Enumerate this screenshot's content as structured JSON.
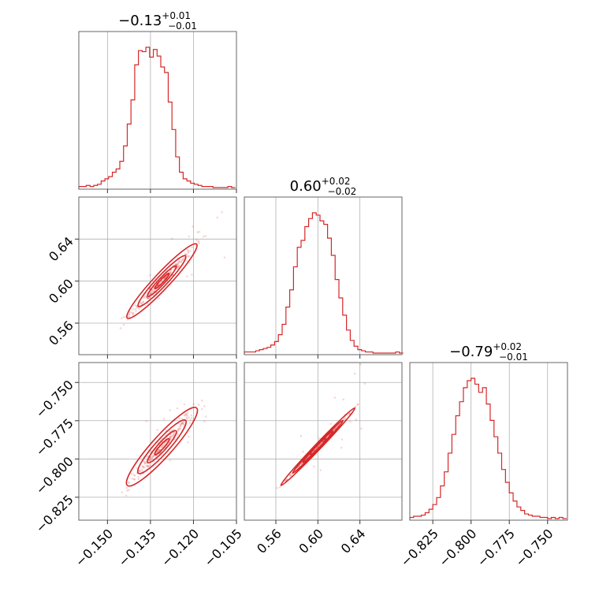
{
  "colors": {
    "series": "#d62728",
    "frame": "#666666",
    "grid": "#b0b0b0"
  },
  "chart_data": {
    "type": "corner",
    "title": "",
    "parameters": [
      {
        "median": "−0.13",
        "plus": "+0.01",
        "minus": "−0.01",
        "range": [
          -0.16,
          -0.105
        ],
        "ticks": [
          -0.15,
          -0.135,
          -0.12,
          -0.105
        ],
        "tick_labels": [
          "−0.150",
          "−0.135",
          "−0.120",
          "−0.105"
        ]
      },
      {
        "median": "0.60",
        "plus": "+0.02",
        "minus": "−0.02",
        "range": [
          0.53,
          0.68
        ],
        "ticks": [
          0.56,
          0.6,
          0.64
        ],
        "tick_labels": [
          "0.56",
          "0.60",
          "0.64"
        ]
      },
      {
        "median": "−0.79",
        "plus": "+0.02",
        "minus": "−0.01",
        "range": [
          -0.84,
          -0.737
        ],
        "ticks": [
          -0.825,
          -0.8,
          -0.775,
          -0.75
        ],
        "tick_labels": [
          "−0.825",
          "−0.800",
          "−0.775",
          "−0.750"
        ]
      }
    ],
    "histograms": [
      {
        "param": 0,
        "bin_width": 0.0013,
        "start": -0.16,
        "counts": [
          1,
          1,
          2,
          1,
          2,
          3,
          6,
          8,
          10,
          14,
          17,
          24,
          38,
          58,
          80,
          112,
          125,
          124,
          128,
          119,
          126,
          120,
          110,
          105,
          78,
          53,
          28,
          14,
          8,
          6,
          4,
          3,
          2,
          1,
          1,
          1,
          0,
          0,
          0,
          0,
          1,
          0
        ]
      },
      {
        "param": 1,
        "bin_width": 0.0036,
        "start": 0.53,
        "counts": [
          1,
          1,
          1,
          2,
          3,
          4,
          5,
          7,
          10,
          16,
          25,
          40,
          55,
          75,
          92,
          98,
          110,
          117,
          122,
          120,
          115,
          112,
          100,
          85,
          64,
          48,
          33,
          20,
          11,
          6,
          3,
          2,
          1,
          1,
          0,
          0,
          0,
          0,
          0,
          0,
          1,
          0
        ]
      },
      {
        "param": 2,
        "bin_width": 0.0025,
        "start": -0.84,
        "counts": [
          1,
          2,
          2,
          3,
          5,
          8,
          12,
          18,
          28,
          40,
          56,
          72,
          88,
          100,
          112,
          118,
          120,
          115,
          108,
          112,
          98,
          84,
          70,
          56,
          42,
          31,
          22,
          15,
          10,
          7,
          4,
          3,
          2,
          2,
          1,
          1,
          0,
          1,
          0,
          1,
          0
        ]
      }
    ],
    "scatter_pairs": [
      {
        "x_param": 0,
        "y_param": 1
      },
      {
        "x_param": 0,
        "y_param": 2
      },
      {
        "x_param": 1,
        "y_param": 2
      }
    ]
  }
}
